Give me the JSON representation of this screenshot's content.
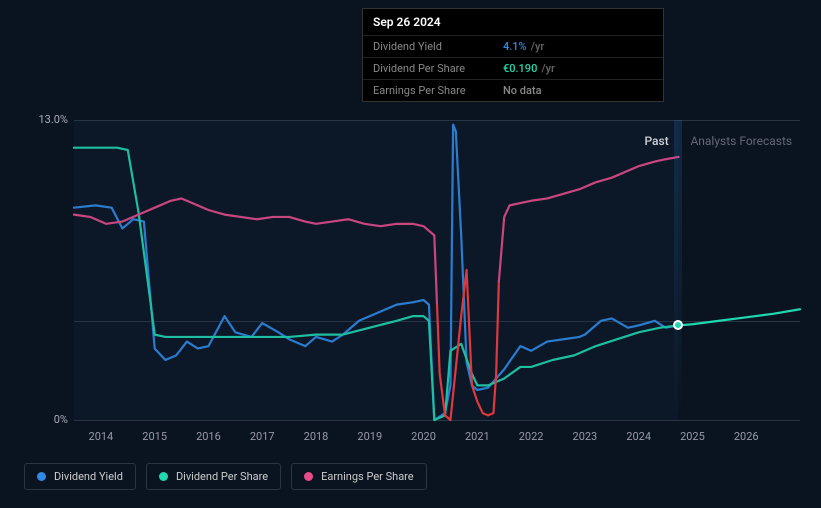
{
  "tooltip": {
    "date": "Sep 26 2024",
    "rows": [
      {
        "label": "Dividend Yield",
        "value": "4.1%",
        "unit": "/yr",
        "color": "#2e8ae6"
      },
      {
        "label": "Dividend Per Share",
        "value": "€0.190",
        "unit": "/yr",
        "color": "#1fd8b0"
      },
      {
        "label": "Earnings Per Share",
        "value": "No data",
        "unit": "",
        "color": "#888"
      }
    ]
  },
  "chart": {
    "type": "line",
    "background_color": "#0a1420",
    "grid_color": "#2a3544",
    "text_color": "#99a",
    "ylim": [
      0,
      13
    ],
    "yticks": [
      {
        "value": 0,
        "label": "0%"
      },
      {
        "value": 13,
        "label": "13.0%"
      }
    ],
    "mid_gridline_value": 4.3,
    "xlim": [
      2013.5,
      2027
    ],
    "xticks": [
      2014,
      2015,
      2016,
      2017,
      2018,
      2019,
      2020,
      2021,
      2022,
      2023,
      2024,
      2025,
      2026
    ],
    "past_end": 2024.74,
    "labels": {
      "past": "Past",
      "forecast": "Analysts Forecasts"
    },
    "series": [
      {
        "name": "Dividend Yield",
        "color": "#2e8ae6",
        "width": 2.2,
        "data": [
          [
            2013.5,
            9.2
          ],
          [
            2013.9,
            9.3
          ],
          [
            2014.2,
            9.2
          ],
          [
            2014.4,
            8.3
          ],
          [
            2014.6,
            8.7
          ],
          [
            2014.8,
            8.6
          ],
          [
            2015.0,
            3.1
          ],
          [
            2015.2,
            2.6
          ],
          [
            2015.4,
            2.8
          ],
          [
            2015.6,
            3.4
          ],
          [
            2015.8,
            3.1
          ],
          [
            2016.0,
            3.2
          ],
          [
            2016.3,
            4.5
          ],
          [
            2016.5,
            3.8
          ],
          [
            2016.8,
            3.6
          ],
          [
            2017.0,
            4.2
          ],
          [
            2017.3,
            3.8
          ],
          [
            2017.5,
            3.5
          ],
          [
            2017.8,
            3.2
          ],
          [
            2018.0,
            3.6
          ],
          [
            2018.3,
            3.4
          ],
          [
            2018.5,
            3.7
          ],
          [
            2018.8,
            4.3
          ],
          [
            2019.0,
            4.5
          ],
          [
            2019.3,
            4.8
          ],
          [
            2019.5,
            5.0
          ],
          [
            2019.8,
            5.1
          ],
          [
            2020.0,
            5.2
          ],
          [
            2020.1,
            5.0
          ],
          [
            2020.2,
            0.0
          ],
          [
            2020.4,
            0.3
          ],
          [
            2020.5,
            1.5
          ],
          [
            2020.55,
            12.8
          ],
          [
            2020.6,
            12.5
          ],
          [
            2020.7,
            8.0
          ],
          [
            2020.8,
            2.5
          ],
          [
            2020.9,
            1.5
          ],
          [
            2021.0,
            1.3
          ],
          [
            2021.2,
            1.4
          ],
          [
            2021.5,
            2.2
          ],
          [
            2021.8,
            3.2
          ],
          [
            2022.0,
            3.0
          ],
          [
            2022.3,
            3.4
          ],
          [
            2022.6,
            3.5
          ],
          [
            2022.9,
            3.6
          ],
          [
            2023.0,
            3.7
          ],
          [
            2023.3,
            4.3
          ],
          [
            2023.5,
            4.4
          ],
          [
            2023.8,
            4.0
          ],
          [
            2024.0,
            4.1
          ],
          [
            2024.3,
            4.3
          ],
          [
            2024.5,
            4.0
          ],
          [
            2024.74,
            4.1
          ]
        ]
      },
      {
        "name": "Dividend Per Share",
        "color": "#1fd8b0",
        "width": 2.2,
        "data": [
          [
            2013.5,
            11.8
          ],
          [
            2013.8,
            11.8
          ],
          [
            2014.0,
            11.8
          ],
          [
            2014.3,
            11.8
          ],
          [
            2014.5,
            11.7
          ],
          [
            2014.7,
            9.0
          ],
          [
            2014.9,
            5.5
          ],
          [
            2015.0,
            3.7
          ],
          [
            2015.2,
            3.6
          ],
          [
            2015.5,
            3.6
          ],
          [
            2016.0,
            3.6
          ],
          [
            2016.5,
            3.6
          ],
          [
            2017.0,
            3.6
          ],
          [
            2017.5,
            3.6
          ],
          [
            2018.0,
            3.7
          ],
          [
            2018.5,
            3.7
          ],
          [
            2019.0,
            4.0
          ],
          [
            2019.5,
            4.3
          ],
          [
            2019.8,
            4.5
          ],
          [
            2020.0,
            4.5
          ],
          [
            2020.1,
            4.3
          ],
          [
            2020.2,
            0.0
          ],
          [
            2020.4,
            0.2
          ],
          [
            2020.5,
            3.0
          ],
          [
            2020.7,
            3.3
          ],
          [
            2020.9,
            2.0
          ],
          [
            2021.0,
            1.5
          ],
          [
            2021.2,
            1.5
          ],
          [
            2021.5,
            1.8
          ],
          [
            2021.8,
            2.3
          ],
          [
            2022.0,
            2.3
          ],
          [
            2022.4,
            2.6
          ],
          [
            2022.8,
            2.8
          ],
          [
            2023.2,
            3.2
          ],
          [
            2023.6,
            3.5
          ],
          [
            2024.0,
            3.8
          ],
          [
            2024.4,
            4.0
          ],
          [
            2024.74,
            4.1
          ],
          [
            2025.0,
            4.15
          ],
          [
            2025.5,
            4.3
          ],
          [
            2026.0,
            4.45
          ],
          [
            2026.5,
            4.6
          ],
          [
            2027.0,
            4.8
          ]
        ]
      },
      {
        "name": "Earnings Per Share Past",
        "color": "#e84a8a",
        "width": 2.2,
        "data": [
          [
            2013.5,
            8.9
          ],
          [
            2013.8,
            8.8
          ],
          [
            2014.1,
            8.5
          ],
          [
            2014.4,
            8.6
          ],
          [
            2014.7,
            8.9
          ],
          [
            2015.0,
            9.2
          ],
          [
            2015.3,
            9.5
          ],
          [
            2015.5,
            9.6
          ],
          [
            2015.8,
            9.3
          ],
          [
            2016.0,
            9.1
          ],
          [
            2016.3,
            8.9
          ],
          [
            2016.6,
            8.8
          ],
          [
            2016.9,
            8.7
          ],
          [
            2017.2,
            8.8
          ],
          [
            2017.5,
            8.8
          ],
          [
            2017.8,
            8.6
          ],
          [
            2018.0,
            8.5
          ],
          [
            2018.3,
            8.6
          ],
          [
            2018.6,
            8.7
          ],
          [
            2018.9,
            8.5
          ],
          [
            2019.2,
            8.4
          ],
          [
            2019.5,
            8.5
          ],
          [
            2019.8,
            8.5
          ],
          [
            2020.0,
            8.4
          ],
          [
            2020.2,
            8.0
          ],
          [
            2020.25,
            5.0
          ]
        ]
      },
      {
        "name": "Earnings Per Share Neg",
        "color": "#ff3b3b",
        "width": 2.2,
        "data": [
          [
            2020.25,
            5.0
          ],
          [
            2020.3,
            2.0
          ],
          [
            2020.4,
            0.2
          ],
          [
            2020.5,
            0.0
          ],
          [
            2020.7,
            4.5
          ],
          [
            2020.8,
            6.5
          ],
          [
            2020.85,
            4.0
          ],
          [
            2020.9,
            1.5
          ],
          [
            2021.0,
            0.8
          ],
          [
            2021.1,
            0.3
          ],
          [
            2021.2,
            0.2
          ],
          [
            2021.3,
            0.3
          ],
          [
            2021.35,
            2.0
          ],
          [
            2021.4,
            6.0
          ]
        ]
      },
      {
        "name": "Earnings Per Share Post",
        "color": "#e84a8a",
        "width": 2.2,
        "data": [
          [
            2021.4,
            6.0
          ],
          [
            2021.5,
            8.8
          ],
          [
            2021.6,
            9.3
          ],
          [
            2021.8,
            9.4
          ],
          [
            2022.0,
            9.5
          ],
          [
            2022.3,
            9.6
          ],
          [
            2022.6,
            9.8
          ],
          [
            2022.9,
            10.0
          ],
          [
            2023.2,
            10.3
          ],
          [
            2023.5,
            10.5
          ],
          [
            2023.8,
            10.8
          ],
          [
            2024.0,
            11.0
          ],
          [
            2024.3,
            11.2
          ],
          [
            2024.5,
            11.3
          ],
          [
            2024.74,
            11.4
          ]
        ]
      }
    ],
    "marker": {
      "x": 2024.74,
      "dot_series_value": 4.1,
      "dot_color": "#1fd8b0",
      "shade_color": "rgba(46,138,230,0.18)"
    }
  },
  "legend": [
    {
      "label": "Dividend Yield",
      "color": "#2e8ae6"
    },
    {
      "label": "Dividend Per Share",
      "color": "#1fd8b0"
    },
    {
      "label": "Earnings Per Share",
      "color": "#e84a8a"
    }
  ]
}
